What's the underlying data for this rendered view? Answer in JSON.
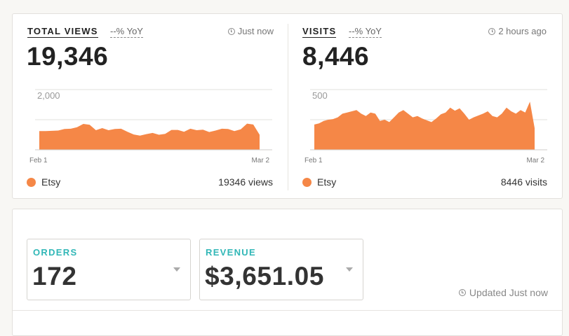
{
  "views": {
    "title": "TOTAL VIEWS",
    "yoy": "--% YoY",
    "timestamp": "Just now",
    "total": "19,346",
    "legend": "Etsy",
    "count_text": "19346 views"
  },
  "visits": {
    "title": "VISITS",
    "yoy": "--% YoY",
    "timestamp": "2 hours ago",
    "total": "8,446",
    "legend": "Etsy",
    "count_text": "8446 visits"
  },
  "orders": {
    "label": "ORDERS",
    "value": "172"
  },
  "revenue": {
    "label": "REVENUE",
    "value": "$3,651.05"
  },
  "updated": "Updated Just now",
  "colors": {
    "series": "#f58747",
    "accent_teal": "#31b7b7"
  },
  "chart_data": [
    {
      "type": "area",
      "title": "TOTAL VIEWS",
      "series": [
        {
          "name": "Etsy",
          "values": [
            620,
            620,
            630,
            640,
            690,
            700,
            750,
            860,
            830,
            650,
            720,
            650,
            690,
            700,
            600,
            510,
            470,
            520,
            560,
            500,
            530,
            660,
            660,
            600,
            700,
            650,
            670,
            590,
            640,
            700,
            690,
            620,
            680,
            870,
            840,
            500
          ]
        }
      ],
      "x_tick_labels": [
        "Feb 1",
        "Mar 2"
      ],
      "y_tick_labels": [
        "2,000"
      ],
      "ylim": [
        0,
        2000
      ],
      "grid": true
    },
    {
      "type": "area",
      "title": "VISITS",
      "series": [
        {
          "name": "Etsy",
          "values": [
            210,
            220,
            240,
            250,
            255,
            270,
            300,
            310,
            320,
            330,
            300,
            280,
            310,
            300,
            240,
            250,
            230,
            270,
            310,
            330,
            300,
            270,
            280,
            260,
            245,
            230,
            260,
            295,
            310,
            350,
            325,
            345,
            300,
            250,
            270,
            285,
            300,
            320,
            280,
            270,
            300,
            350,
            320,
            300,
            330,
            310,
            400,
            180
          ]
        }
      ],
      "x_tick_labels": [
        "Feb 1",
        "Mar 2"
      ],
      "y_tick_labels": [
        "500"
      ],
      "ylim": [
        0,
        500
      ],
      "grid": true
    }
  ]
}
